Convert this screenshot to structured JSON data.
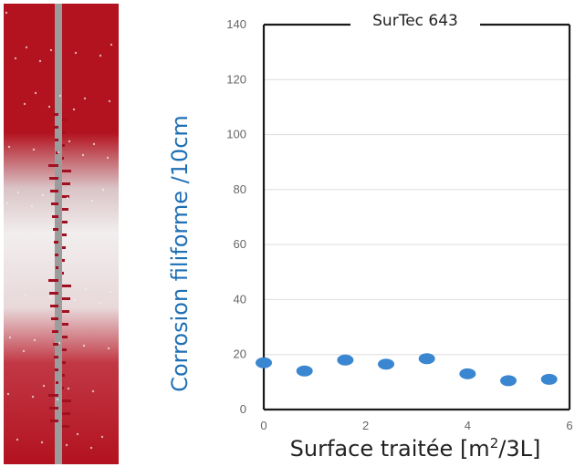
{
  "photo": {
    "description_icon": "filiform-corrosion-panel-photo",
    "colors": {
      "paint": "#b3121f",
      "scratch": "#9a9a9a",
      "corrosion": "#f0f0f0"
    }
  },
  "chart_data": {
    "type": "scatter",
    "title": "SurTec 643",
    "xlabel_main": "Surface traitée [m",
    "xlabel_sup": "2",
    "xlabel_tail": "/3L]",
    "ylabel": "Corrosion filiforme /10cm",
    "xlim": [
      0,
      6
    ],
    "ylim": [
      0,
      140
    ],
    "x_ticks": [
      0,
      2,
      4,
      6
    ],
    "y_ticks": [
      0,
      20,
      40,
      60,
      80,
      100,
      120,
      140
    ],
    "grid": "horizontal",
    "points": [
      {
        "x": 0.0,
        "y": 17
      },
      {
        "x": 0.8,
        "y": 14
      },
      {
        "x": 1.6,
        "y": 18
      },
      {
        "x": 2.4,
        "y": 16.5
      },
      {
        "x": 3.2,
        "y": 18.5
      },
      {
        "x": 4.0,
        "y": 13
      },
      {
        "x": 4.8,
        "y": 10.5
      },
      {
        "x": 5.6,
        "y": 11
      }
    ],
    "colors": {
      "point": "#3a86d1",
      "axis": "#1a1a1a",
      "grid": "#dddddd",
      "ylabel": "#1f6fb5"
    }
  }
}
